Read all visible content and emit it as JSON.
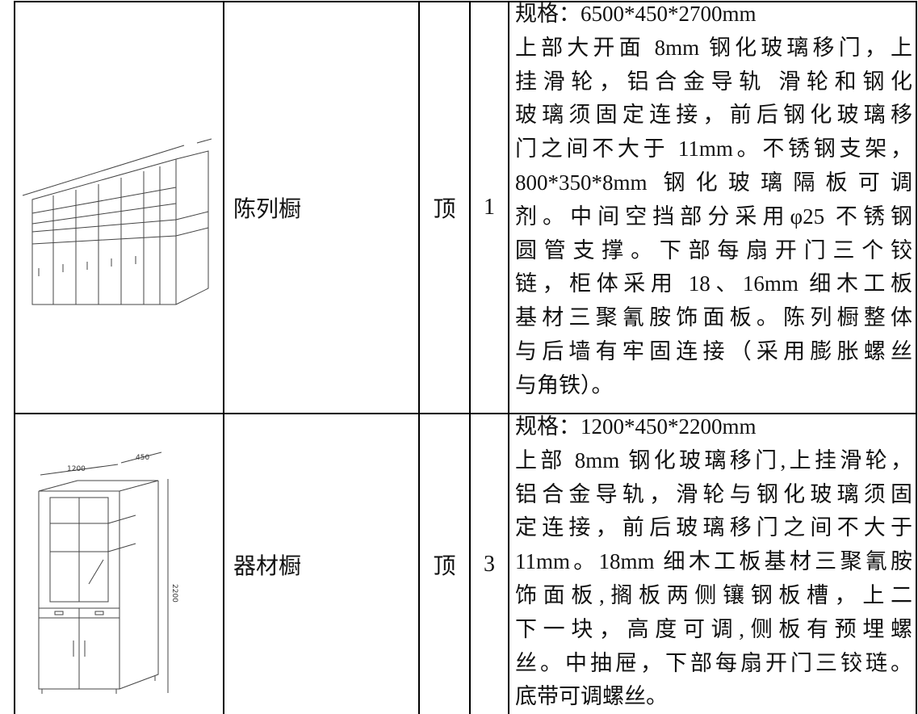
{
  "table": {
    "rows": [
      {
        "name": "陈列橱",
        "unit": "顶",
        "quantity": 1,
        "description": [
          "规格：6500*450*2700mm",
          "上部大开面 8mm 钢化玻璃移门，上",
          "挂滑轮，铝合金导轨 滑轮和钢化",
          "玻璃须固定连接，前后钢化玻璃移",
          "门之间不大于 11mm。不锈钢支架，",
          "800*350*8mm 钢化玻璃隔板可调",
          "剂。中间空挡部分采用φ25 不锈钢",
          "圆管支撑。下部每扇开门三个铰",
          "链，柜体采用 18、16mm 细木工板",
          "基材三聚氰胺饰面板。陈列橱整体",
          "与后墙有牢固连接（采用膨胀螺丝",
          "与角铁）。"
        ]
      },
      {
        "name": "器材橱",
        "unit": "顶",
        "quantity": 3,
        "dimensions": [
          "1200",
          "450",
          "2200"
        ],
        "description": [
          "规格：1200*450*2200mm",
          "上部 8mm 钢化玻璃移门,上挂滑轮，",
          "铝合金导轨，滑轮与钢化玻璃须固",
          "定连接，前后玻璃移门之间不大于",
          "11mm。18mm 细木工板基材三聚氰胺",
          "饰面板,搁板两侧镶钢板槽，上二",
          "下一块，高度可调,侧板有预埋螺",
          "丝。中抽屉，下部每扇开门三铰琏。",
          "底带可调螺丝。"
        ]
      }
    ]
  }
}
